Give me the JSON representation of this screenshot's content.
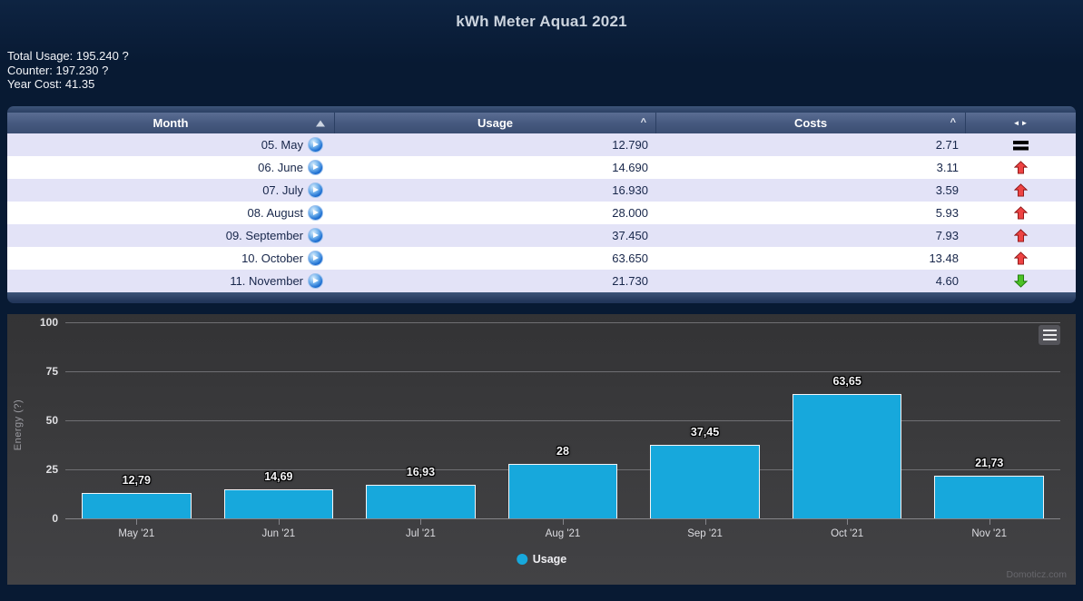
{
  "page": {
    "title": "kWh Meter Aqua1 2021"
  },
  "summary": {
    "total_usage": "Total Usage: 195.240 ?",
    "counter": "Counter: 197.230 ?",
    "year_cost": "Year Cost: 41.35"
  },
  "table": {
    "columns": [
      {
        "label": "Month",
        "sort": "asc"
      },
      {
        "label": "Usage",
        "sort": "none"
      },
      {
        "label": "Costs",
        "sort": "none"
      },
      {
        "label": "",
        "icon": "swap-icon"
      }
    ],
    "rows": [
      {
        "month": "05. May",
        "usage": "12.790",
        "costs": "2.71",
        "trend": "equal"
      },
      {
        "month": "06. June",
        "usage": "14.690",
        "costs": "3.11",
        "trend": "up"
      },
      {
        "month": "07. July",
        "usage": "16.930",
        "costs": "3.59",
        "trend": "up"
      },
      {
        "month": "08. August",
        "usage": "28.000",
        "costs": "5.93",
        "trend": "up"
      },
      {
        "month": "09. September",
        "usage": "37.450",
        "costs": "7.93",
        "trend": "up"
      },
      {
        "month": "10. October",
        "usage": "63.650",
        "costs": "13.48",
        "trend": "up"
      },
      {
        "month": "11. November",
        "usage": "21.730",
        "costs": "4.60",
        "trend": "down"
      }
    ]
  },
  "chart_data": {
    "type": "bar",
    "categories": [
      "May '21",
      "Jun '21",
      "Jul '21",
      "Aug '21",
      "Sep '21",
      "Oct '21",
      "Nov '21"
    ],
    "values": [
      12.79,
      14.69,
      16.93,
      28,
      37.45,
      63.65,
      21.73
    ],
    "value_labels": [
      "12,79",
      "14,69",
      "16,93",
      "28",
      "37,45",
      "63,65",
      "21,73"
    ],
    "title": "",
    "xlabel": "",
    "ylabel": "Energy (?)",
    "ylim": [
      0,
      100
    ],
    "yticks": [
      0,
      25,
      50,
      75,
      100
    ],
    "grid": true,
    "legend": {
      "position": "bottom",
      "label": "Usage"
    },
    "series_color": "#17a8dc",
    "watermark": "Domoticz.com"
  },
  "colors": {
    "bar": "#17a8dc",
    "trend_up": "#ee4343",
    "trend_down": "#4cc226",
    "trend_equal": "#000000",
    "row_alt": "#e3e3f7",
    "page_bg": "#081a33"
  }
}
